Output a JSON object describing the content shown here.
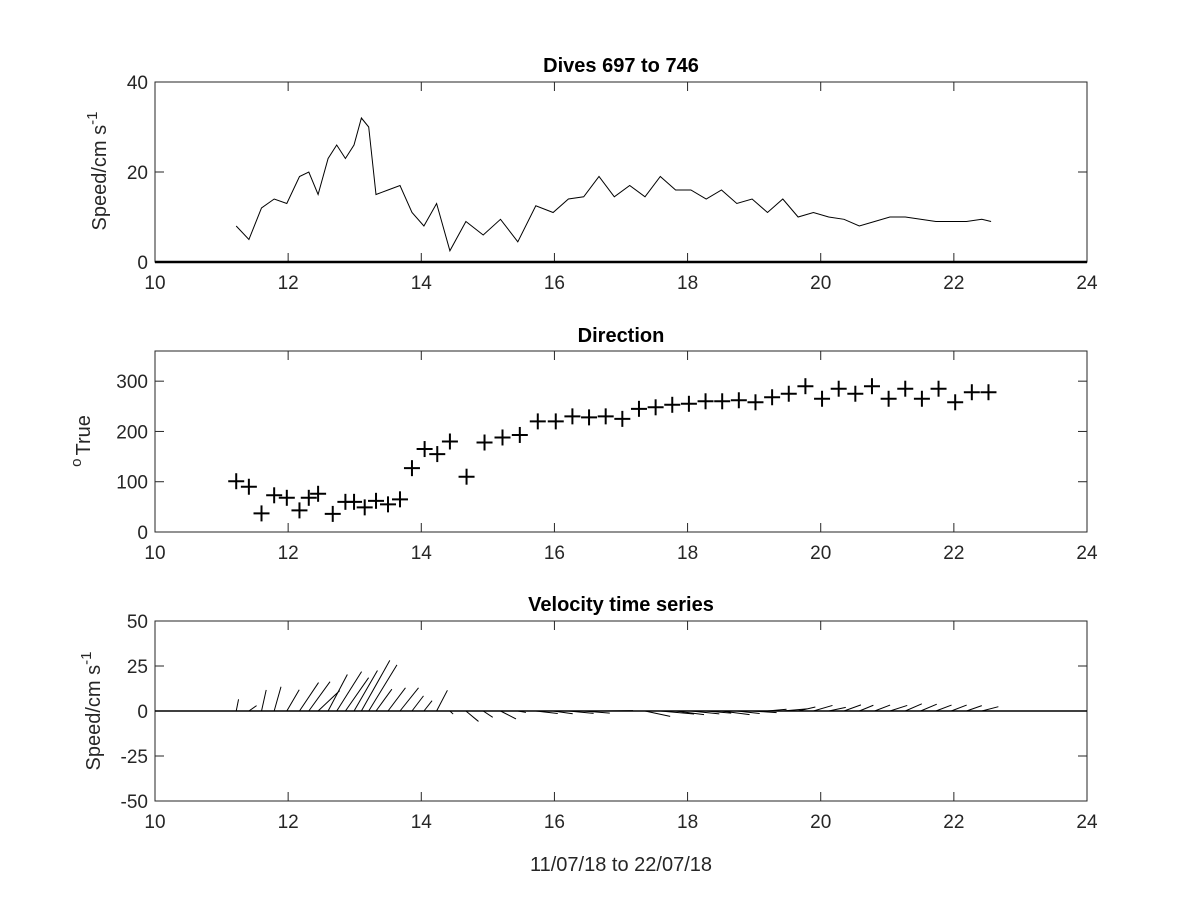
{
  "chart_data": [
    {
      "type": "line",
      "title": "Dives 697 to 746",
      "ylabel": "Speed/cm s",
      "ylabel_superscript": "-1",
      "xlim": [
        10,
        24
      ],
      "ylim": [
        0,
        40
      ],
      "xticks": [
        "10",
        "12",
        "14",
        "16",
        "18",
        "20",
        "22",
        "24"
      ],
      "yticks": [
        "0",
        "20",
        "40"
      ],
      "series": [
        {
          "x": [
            11.22,
            11.41,
            11.6,
            11.79,
            11.98,
            12.17,
            12.31,
            12.45,
            12.6,
            12.73,
            12.86,
            12.99,
            13.1,
            13.21,
            13.32,
            13.5,
            13.68,
            13.86,
            14.04,
            14.23,
            14.43,
            14.67,
            14.93,
            15.19,
            15.45,
            15.72,
            15.98,
            16.21,
            16.44,
            16.67,
            16.9,
            17.13,
            17.36,
            17.59,
            17.82,
            18.05,
            18.28,
            18.51,
            18.74,
            18.97,
            19.2,
            19.43,
            19.66,
            19.89,
            20.12,
            20.35,
            20.58,
            20.81,
            21.04,
            21.27,
            21.5,
            21.73,
            21.96,
            22.19,
            22.42,
            22.56
          ],
          "y": [
            8,
            5,
            12,
            14,
            13,
            19,
            20,
            15,
            23,
            26,
            23,
            26,
            32,
            30,
            15,
            16,
            17,
            11,
            8,
            13,
            2.5,
            9,
            6,
            9.5,
            4.5,
            12.5,
            11,
            14,
            14.5,
            19,
            14.5,
            17,
            14.5,
            19,
            16,
            16,
            14,
            16,
            13,
            14,
            11,
            14,
            10,
            11,
            10,
            9.5,
            8,
            9,
            10,
            10,
            9.5,
            9,
            9,
            9,
            9.5,
            9
          ]
        }
      ]
    },
    {
      "type": "scatter",
      "title": "Direction",
      "ylabel": "True",
      "ylabel_superscript": "o",
      "xlim": [
        10,
        24
      ],
      "ylim": [
        0,
        360
      ],
      "xticks": [
        "10",
        "12",
        "14",
        "16",
        "18",
        "20",
        "22",
        "24"
      ],
      "yticks": [
        "0",
        "100",
        "200",
        "300"
      ],
      "marker": "+",
      "series": [
        {
          "x": [
            11.22,
            11.41,
            11.6,
            11.79,
            11.98,
            12.17,
            12.31,
            12.45,
            12.67,
            12.86,
            12.99,
            13.15,
            13.32,
            13.5,
            13.68,
            13.86,
            14.05,
            14.24,
            14.43,
            14.68,
            14.95,
            15.22,
            15.48,
            15.75,
            16.02,
            16.27,
            16.52,
            16.77,
            17.02,
            17.27,
            17.52,
            17.77,
            18.02,
            18.27,
            18.52,
            18.77,
            19.02,
            19.27,
            19.52,
            19.77,
            20.02,
            20.27,
            20.52,
            20.77,
            21.02,
            21.27,
            21.52,
            21.77,
            22.02,
            22.27,
            22.52
          ],
          "y": [
            101,
            90,
            37,
            73,
            68,
            43,
            68,
            76,
            36,
            60,
            60,
            49,
            62,
            55,
            65,
            127,
            165,
            155,
            180,
            110,
            178,
            188,
            193,
            220,
            220,
            230,
            228,
            230,
            225,
            245,
            248,
            253,
            255,
            260,
            260,
            262,
            258,
            268,
            275,
            290,
            265,
            285,
            275,
            290,
            265,
            285,
            265,
            285,
            258,
            278,
            278
          ]
        }
      ]
    },
    {
      "type": "line",
      "subtype": "stick-plot",
      "title": "Velocity time series",
      "ylabel": "Speed/cm s",
      "ylabel_superscript": "-1",
      "xlabel": "11/07/18 to 22/07/18",
      "xlim": [
        10,
        24
      ],
      "ylim": [
        -50,
        50
      ],
      "xticks": [
        "10",
        "12",
        "14",
        "16",
        "18",
        "20",
        "22",
        "24"
      ],
      "yticks": [
        "50",
        "25",
        "0",
        "-25",
        "-50"
      ],
      "vectors": {
        "x": [
          11.22,
          11.41,
          11.6,
          11.79,
          11.98,
          12.17,
          12.31,
          12.45,
          12.6,
          12.73,
          12.86,
          12.99,
          13.1,
          13.21,
          13.32,
          13.5,
          13.68,
          13.86,
          14.04,
          14.23,
          14.43,
          14.67,
          14.93,
          15.19,
          15.45,
          15.72,
          15.98,
          16.21,
          16.44,
          16.67,
          16.9,
          17.13,
          17.36,
          17.59,
          17.82,
          18.05,
          18.28,
          18.51,
          18.74,
          18.97,
          19.2,
          19.43,
          19.66,
          19.89,
          20.12,
          20.35,
          20.58,
          20.81,
          21.04,
          21.27,
          21.5,
          21.73,
          21.96,
          22.19,
          22.42
        ],
        "east": [
          1.3,
          4.3,
          2.6,
          3.8,
          6.9,
          10.6,
          11.8,
          12.0,
          10.7,
          13.8,
          12.9,
          13.0,
          15.8,
          15.7,
          8.8,
          9.7,
          10.3,
          6.4,
          4.5,
          6.0,
          1.8,
          7.0,
          5.3,
          8.6,
          4.5,
          12.2,
          10.9,
          14.0,
          14.5,
          18.9,
          14.5,
          16.3,
          14.0,
          18.8,
          15.8,
          15.8,
          13.9,
          15.6,
          12.7,
          13.6,
          10.6,
          13.4,
          9.6,
          10.6,
          9.5,
          9.4,
          7.8,
          8.6,
          9.6,
          9.2,
          9.0,
          8.7,
          8.6,
          8.5,
          9.2
        ],
        "north": [
          6.5,
          3.0,
          11.7,
          13.5,
          11.8,
          15.8,
          16.3,
          11.3,
          20.3,
          21.9,
          18.5,
          22.5,
          28.1,
          25.6,
          12.1,
          12.9,
          12.9,
          8.4,
          5.7,
          11.5,
          -1.7,
          -5.8,
          -3.5,
          -4.4,
          -0.8,
          -1.4,
          -1.5,
          -1.3,
          -1.2,
          0.2,
          0.0,
          0.0,
          -3.0,
          -1.7,
          -2.0,
          -1.6,
          -1.2,
          -2.0,
          -1.4,
          -0.9,
          1.0,
          1.2,
          2.2,
          3.1,
          2.0,
          3.4,
          3.2,
          3.3,
          3.1,
          4.0,
          3.8,
          3.3,
          3.3,
          3.0,
          2.4
        ]
      }
    }
  ]
}
